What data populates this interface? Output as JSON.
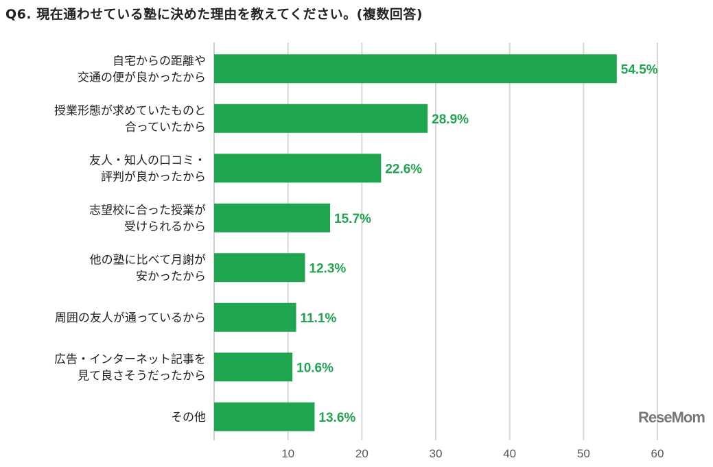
{
  "title": "Q6. 現在通わせている塾に決めた理由を教えてください。(複数回答)",
  "watermark": "ReseMom",
  "chart_data": {
    "type": "bar",
    "orientation": "horizontal",
    "title": "Q6. 現在通わせている塾に決めた理由を教えてください。(複数回答)",
    "categories": [
      [
        "自宅からの距離や",
        "交通の便が良かったから"
      ],
      [
        "授業形態が求めていたものと",
        "合っていたから"
      ],
      [
        "友人・知人の口コミ・",
        "評判が良かったから"
      ],
      [
        "志望校に合った授業が",
        "受けられるから"
      ],
      [
        "他の塾に比べて月謝が",
        "安かったから"
      ],
      [
        "周囲の友人が通っているから"
      ],
      [
        "広告・インターネット記事を",
        "見て良さそうだったから"
      ],
      [
        "その他"
      ]
    ],
    "values": [
      54.5,
      28.9,
      22.6,
      15.7,
      12.3,
      11.1,
      10.6,
      13.6
    ],
    "value_labels": [
      "54.5%",
      "28.9%",
      "22.6%",
      "15.7%",
      "12.3%",
      "11.1%",
      "10.6%",
      "13.6%"
    ],
    "xlim": [
      0,
      60
    ],
    "ticks": [
      "10",
      "20",
      "30",
      "40",
      "50",
      "60"
    ],
    "grid": true,
    "bar_color": "#1fa54f"
  }
}
